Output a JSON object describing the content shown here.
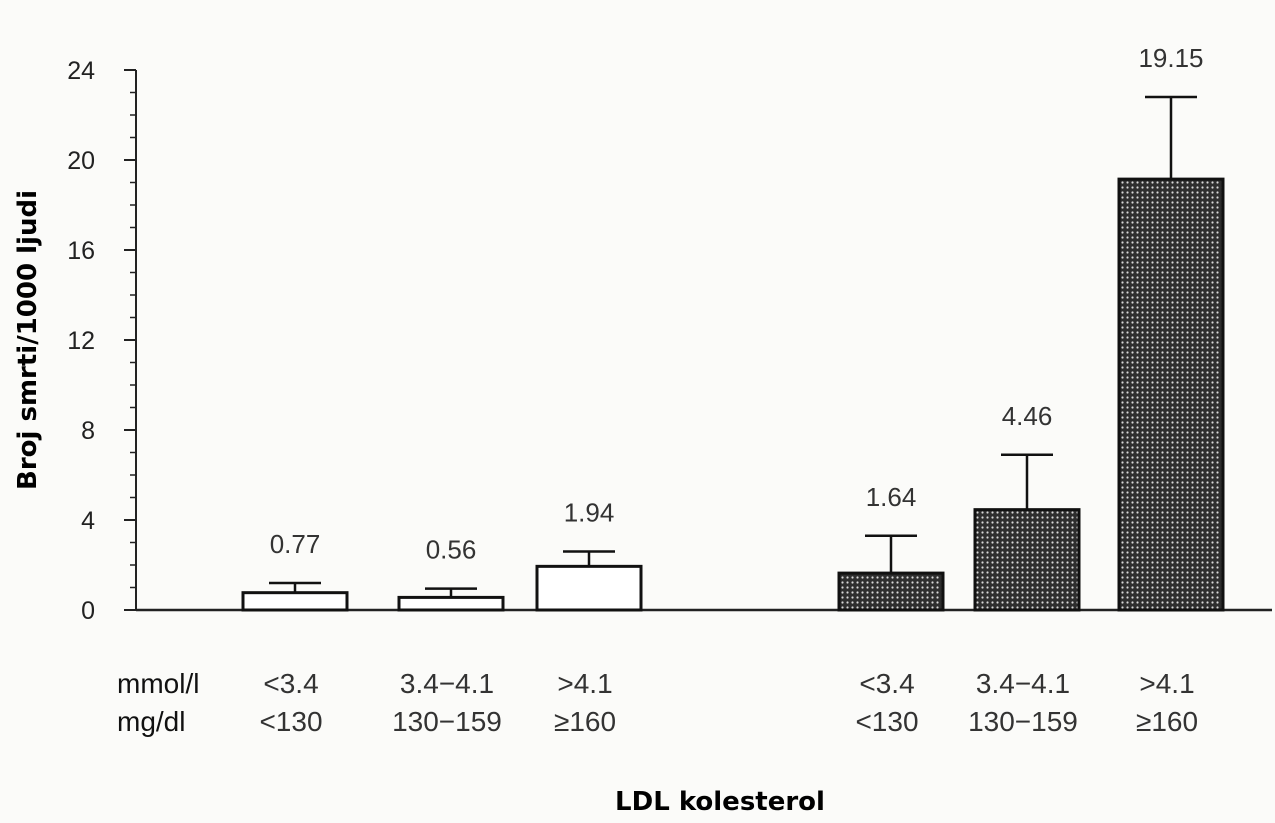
{
  "chart_data": {
    "type": "bar",
    "title": "",
    "xlabel": "LDL kolesterol",
    "ylabel": "Broj smrti/1000 ljudi",
    "ylim": [
      0,
      24
    ],
    "yticks": [
      "0",
      "4",
      "8",
      "12",
      "16",
      "20",
      "24"
    ],
    "grid": false,
    "unit_labels": {
      "mmol": "mmol/l",
      "mgdl": "mg/dl"
    },
    "groups": [
      {
        "pattern": "open",
        "bars": [
          {
            "mmol": "<3.4",
            "mgdl": "<130",
            "value": 0.77,
            "value_label": "0.77",
            "error_upper": 1.2
          },
          {
            "mmol": "3.4−4.1",
            "mgdl": "130−159",
            "value": 0.56,
            "value_label": "0.56",
            "error_upper": 0.95
          },
          {
            "mmol": ">4.1",
            "mgdl": "≥160",
            "value": 1.94,
            "value_label": "1.94",
            "error_upper": 2.6
          }
        ]
      },
      {
        "pattern": "dotted",
        "bars": [
          {
            "mmol": "<3.4",
            "mgdl": "<130",
            "value": 1.64,
            "value_label": "1.64",
            "error_upper": 3.3
          },
          {
            "mmol": "3.4−4.1",
            "mgdl": "130−159",
            "value": 4.46,
            "value_label": "4.46",
            "error_upper": 6.9
          },
          {
            "mmol": ">4.1",
            "mgdl": "≥160",
            "value": 19.15,
            "value_label": "19.15",
            "error_upper": 22.8
          }
        ]
      }
    ]
  },
  "colors": {
    "bar_outline": "#111111",
    "dotted_fill": "#3a3a3a",
    "open_fill": "#ffffff",
    "axis": "#222222"
  }
}
